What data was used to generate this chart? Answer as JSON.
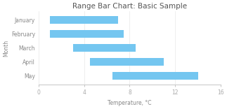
{
  "title": "Range Bar Chart: Basic Sample",
  "xlabel": "Temperature, °C",
  "ylabel": "Month",
  "categories": [
    "January",
    "February",
    "March",
    "April",
    "May"
  ],
  "ranges": [
    [
      1,
      7
    ],
    [
      1,
      7.5
    ],
    [
      3,
      8.5
    ],
    [
      4.5,
      11
    ],
    [
      6.5,
      14
    ]
  ],
  "bar_color": "#74c6f0",
  "xlim": [
    0,
    16
  ],
  "xticks": [
    0,
    4,
    8,
    12,
    16
  ],
  "background_color": "#ffffff",
  "title_fontsize": 7.5,
  "axis_fontsize": 5.5,
  "tick_fontsize": 5.5,
  "bar_height": 0.55
}
